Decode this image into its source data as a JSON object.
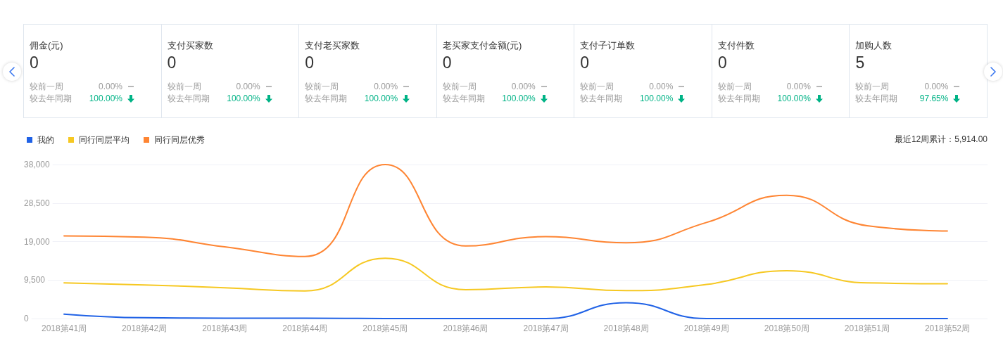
{
  "chart_data": [
    {
      "type": "other",
      "categories": [
        "佣金(元)",
        "支付买家数",
        "支付老买家数",
        "老买家支付金额(元)",
        "支付子订单数",
        "支付件数",
        "加购人数"
      ],
      "values": [
        0,
        0,
        0,
        0,
        0,
        0,
        5
      ],
      "data_labels": true,
      "series": [
        {
          "name": "较前一周",
          "values": [
            0,
            0,
            0,
            0,
            0,
            0,
            0
          ],
          "value_labels": [
            "0.00%",
            "0.00%",
            "0.00%",
            "0.00%",
            "0.00%",
            "0.00%",
            "0.00%"
          ]
        },
        {
          "name": "较去年同期",
          "values": [
            100,
            100,
            100,
            100,
            100,
            100,
            97.65
          ],
          "value_labels": [
            "100.00%",
            "100.00%",
            "100.00%",
            "100.00%",
            "100.00%",
            "100.00%",
            "97.65%"
          ]
        }
      ]
    },
    {
      "type": "line",
      "categories": [
        "2018第41周",
        "2018第42周",
        "2018第43周",
        "2018第44周",
        "2018第45周",
        "2018第46周",
        "2018第47周",
        "2018第48周",
        "2018第49周",
        "2018第50周",
        "2018第51周",
        "2018第52周"
      ],
      "series": [
        {
          "name": "我的",
          "color": "#2062e6",
          "values": [
            1100,
            200,
            100,
            100,
            0,
            0,
            0,
            3900,
            0,
            0,
            0,
            0
          ]
        },
        {
          "name": "同行同层平均",
          "color": "#f6c822",
          "values": [
            8800,
            8300,
            7600,
            6800,
            14900,
            7100,
            7800,
            6900,
            8400,
            11800,
            8800,
            8600
          ]
        },
        {
          "name": "同行同层优秀",
          "color": "#fe8533",
          "values": [
            20400,
            20100,
            17700,
            15300,
            38000,
            17900,
            20200,
            18700,
            23700,
            30400,
            22900,
            21600
          ]
        }
      ],
      "ylim": [
        0,
        38000
      ],
      "yticks": [
        0,
        {
          "value": 9500,
          "label": "9,500"
        },
        {
          "value": 19000,
          "label": "19,000"
        },
        {
          "value": 28500,
          "label": "28,500"
        },
        {
          "value": 38000,
          "label": "38,000"
        }
      ],
      "grid": "y",
      "legend": "top left",
      "marker": "none",
      "line_style": "solid",
      "annotations": [
        "最近12周累计：5,914.00"
      ]
    }
  ]
}
